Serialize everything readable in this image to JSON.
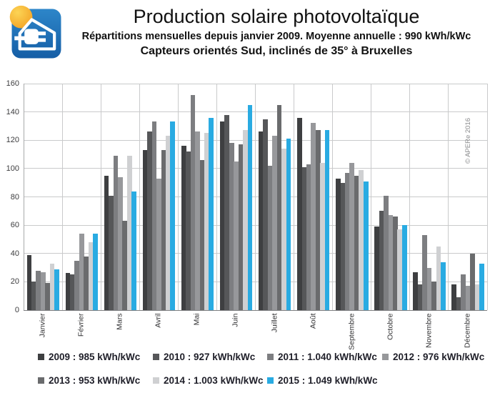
{
  "header": {
    "title": "Production solaire photovoltaïque",
    "subtitle1": "Répartitions mensuelles depuis janvier 2009. Moyenne annuelle : 990 kWh/kWc",
    "subtitle2": "Capteurs orientés Sud, inclinés de 35° à Bruxelles",
    "logo": {
      "icon": "sun-house-plug-logo",
      "bg_color": "#1e79c0",
      "sun_color": "#f9b233"
    }
  },
  "chart_data": {
    "type": "bar",
    "title": "Production solaire photovoltaïque",
    "xlabel": "",
    "ylabel": "",
    "unit": "kWh/kWc",
    "ylim": [
      0,
      160
    ],
    "yticks": [
      0,
      20,
      40,
      60,
      80,
      100,
      120,
      140,
      160
    ],
    "grid": true,
    "legend_position": "bottom",
    "watermark": "© APERe 2016",
    "categories": [
      "Janvier",
      "Février",
      "Mars",
      "Avril",
      "Mai",
      "Juin",
      "Juillet",
      "Août",
      "Septembre",
      "Octobre",
      "Novembre",
      "Décembre"
    ],
    "series": [
      {
        "name": "2009",
        "legend_label": "2009 : 985 kWh/kWc",
        "color": "#3e3f41",
        "values": [
          39,
          26,
          95,
          113,
          116,
          133,
          126,
          136,
          93,
          59,
          27,
          18
        ]
      },
      {
        "name": "2010",
        "legend_label": "2010 : 927 kWh/kWc",
        "color": "#565759",
        "values": [
          20,
          25,
          81,
          126,
          112,
          138,
          135,
          101,
          90,
          70,
          18,
          9
        ]
      },
      {
        "name": "2011",
        "legend_label": "2011 : 1.040 kWh/kWc",
        "color": "#7d7e81",
        "values": [
          28,
          35,
          109,
          133,
          152,
          118,
          102,
          103,
          97,
          81,
          53,
          25
        ]
      },
      {
        "name": "2012",
        "legend_label": "2012 : 976 kWh/kWc",
        "color": "#97989b",
        "values": [
          27,
          54,
          94,
          93,
          126,
          105,
          123,
          132,
          104,
          67,
          30,
          17
        ]
      },
      {
        "name": "2013",
        "legend_label": "2013 : 953 kWh/kWc",
        "color": "#6a6b6d",
        "values": [
          19,
          38,
          63,
          113,
          106,
          117,
          145,
          127,
          95,
          66,
          20,
          40
        ]
      },
      {
        "name": "2014",
        "legend_label": "2014 : 1.003 kWh/kWc",
        "color": "#cfd0d2",
        "values": [
          33,
          48,
          109,
          123,
          125,
          127,
          114,
          104,
          99,
          57,
          45,
          18
        ]
      },
      {
        "name": "2015",
        "legend_label": "2015 : 1.049 kWh/kWc",
        "color": "#29abe2",
        "values": [
          29,
          54,
          84,
          133,
          136,
          145,
          121,
          127,
          91,
          60,
          34,
          33
        ]
      }
    ]
  }
}
